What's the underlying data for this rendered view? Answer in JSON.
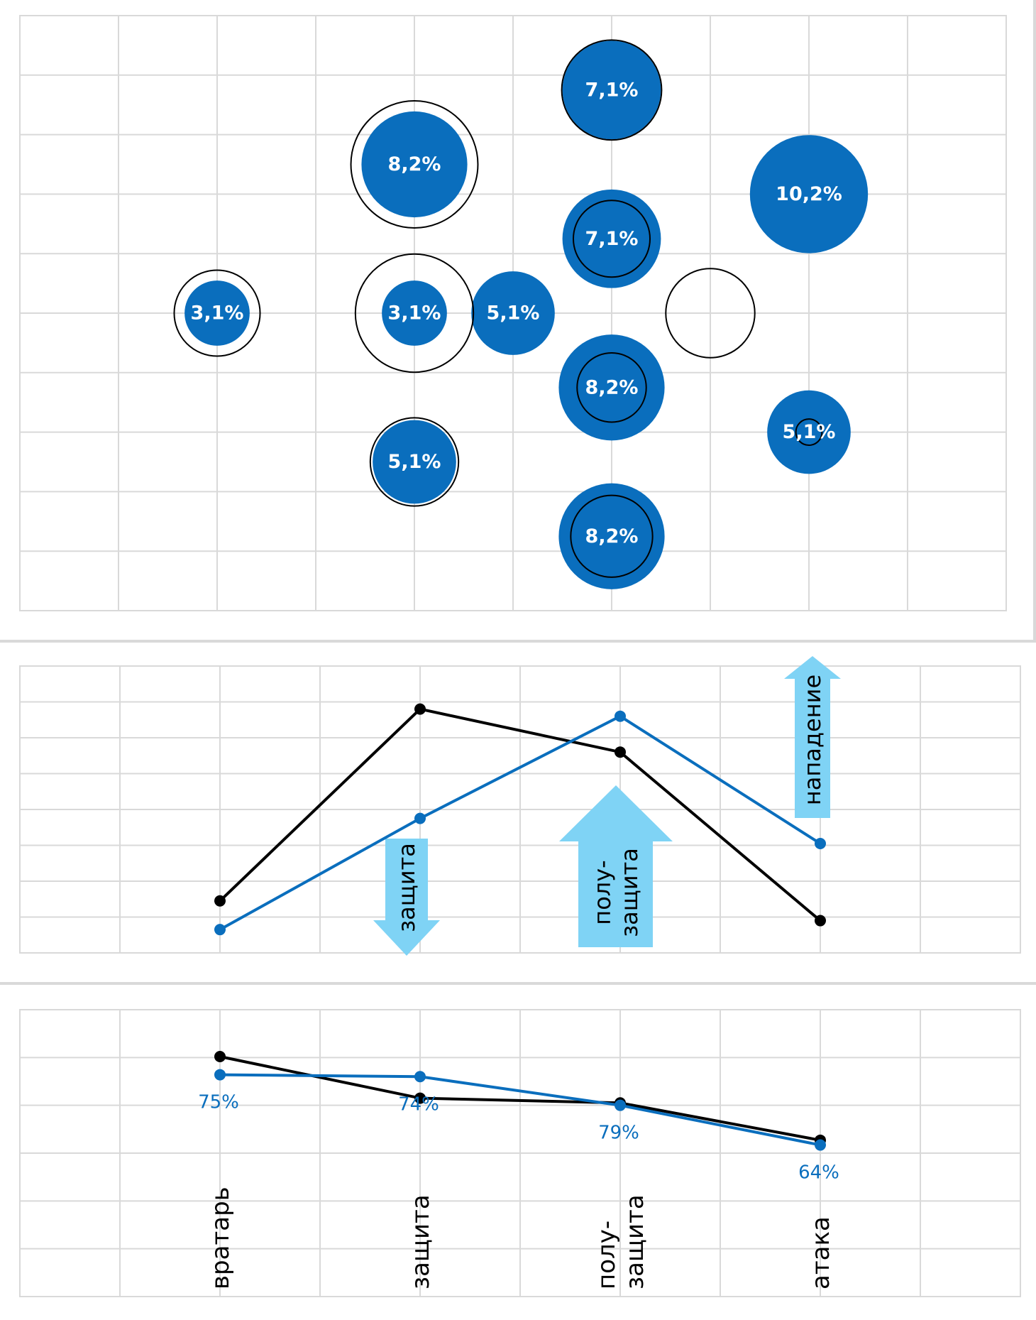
{
  "colors": {
    "blue": "#0a6ebd",
    "black": "#000000",
    "arrow": "#7fd3f5",
    "grid": "#d9d9d9"
  },
  "chart_data": [
    {
      "type": "bubble",
      "title": "",
      "xlabel": "",
      "ylabel": "",
      "grid": true,
      "xlim": [
        0,
        10
      ],
      "ylim": [
        0,
        10
      ],
      "series": [
        {
          "style": "filled-blue",
          "points": [
            {
              "x": 2,
              "y": 5,
              "size": 3.1,
              "label": "3,1%"
            },
            {
              "x": 4,
              "y": 5,
              "size": 3.1,
              "label": "3,1%"
            },
            {
              "x": 5,
              "y": 5,
              "size": 5.1,
              "label": "5,1%"
            },
            {
              "x": 4,
              "y": 7.5,
              "size": 8.2,
              "label": "8,2%"
            },
            {
              "x": 4,
              "y": 2.5,
              "size": 5.1,
              "label": "5,1%"
            },
            {
              "x": 6,
              "y": 8.75,
              "size": 7.1,
              "label": "7,1%"
            },
            {
              "x": 6,
              "y": 6.25,
              "size": 7.1,
              "label": "7,1%"
            },
            {
              "x": 6,
              "y": 3.75,
              "size": 8.2,
              "label": "8,2%"
            },
            {
              "x": 6,
              "y": 1.25,
              "size": 8.2,
              "label": "8,2%"
            },
            {
              "x": 8,
              "y": 7,
              "size": 10.2,
              "label": "10,2%"
            },
            {
              "x": 8,
              "y": 3,
              "size": 5.1,
              "label": "5,1%"
            }
          ]
        },
        {
          "style": "outline-black",
          "points": [
            {
              "x": 2,
              "y": 5,
              "size": 5.4
            },
            {
              "x": 4,
              "y": 5,
              "size": 10.2
            },
            {
              "x": 4,
              "y": 7.5,
              "size": 11.8
            },
            {
              "x": 4,
              "y": 2.5,
              "size": 5.7
            },
            {
              "x": 6,
              "y": 8.75,
              "size": 7.3
            },
            {
              "x": 6,
              "y": 6.25,
              "size": 4.3
            },
            {
              "x": 6,
              "y": 3.75,
              "size": 3.5
            },
            {
              "x": 6,
              "y": 1.25,
              "size": 4.9
            },
            {
              "x": 7,
              "y": 5,
              "size": 5.8
            },
            {
              "x": 8,
              "y": 3,
              "size": 0.5
            }
          ]
        }
      ]
    },
    {
      "type": "line",
      "title": "",
      "grid": true,
      "xlim": [
        0,
        10
      ],
      "ylim": [
        0,
        8
      ],
      "categories": [
        2,
        4,
        6,
        8
      ],
      "series": [
        {
          "color": "black",
          "values": [
            1.45,
            6.8,
            5.6,
            0.9
          ]
        },
        {
          "color": "blue",
          "values": [
            0.65,
            3.75,
            6.6,
            3.05
          ]
        }
      ],
      "arrows": [
        {
          "text": "защита",
          "direction": "down",
          "size": "small"
        },
        {
          "text": "полу-\nзащита",
          "direction": "up",
          "size": "large"
        },
        {
          "text": "нападение",
          "direction": "up",
          "size": "small"
        }
      ]
    },
    {
      "type": "line",
      "title": "",
      "grid": true,
      "ylim": [
        0,
        6
      ],
      "categories": [
        "вратарь",
        "защита",
        "полу-\nзащита",
        "атака"
      ],
      "series": [
        {
          "color": "black",
          "values": [
            5.02,
            4.15,
            4.05,
            3.27
          ]
        },
        {
          "color": "blue",
          "values": [
            4.64,
            4.6,
            4.0,
            3.17
          ],
          "data_labels": [
            "75%",
            "74%",
            "79%",
            "64%"
          ]
        }
      ]
    }
  ],
  "category_labels": [
    "вратарь",
    "защита",
    "полу-",
    "защита",
    "атака"
  ],
  "arrow_labels": [
    "защита",
    "полу-",
    "защита",
    "нападение"
  ]
}
